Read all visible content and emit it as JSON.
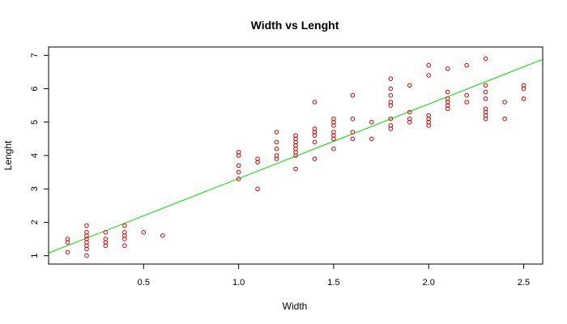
{
  "chart_data": {
    "type": "scatter",
    "title": "Width vs Lenght",
    "xlabel": "Width",
    "ylabel": "Lenght",
    "xlim": [
      0.0,
      2.6
    ],
    "ylim": [
      0.75,
      7.25
    ],
    "x_ticks": [
      0.5,
      1.0,
      1.5,
      2.0,
      2.5
    ],
    "x_tick_labels": [
      "0.5",
      "1.0",
      "1.5",
      "2.0",
      "2.5"
    ],
    "y_ticks": [
      1,
      2,
      3,
      4,
      5,
      6,
      7
    ],
    "y_tick_labels": [
      "1",
      "2",
      "3",
      "4",
      "5",
      "6",
      "7"
    ],
    "grid": false,
    "point_color": "#cc0000",
    "line_color": "#00dd00",
    "regression_line": {
      "intercept": 1.08,
      "slope": 2.23
    },
    "points": [
      [
        0.1,
        1.4
      ],
      [
        0.1,
        1.5
      ],
      [
        0.1,
        1.1
      ],
      [
        0.2,
        1.0
      ],
      [
        0.2,
        1.2
      ],
      [
        0.2,
        1.3
      ],
      [
        0.2,
        1.4
      ],
      [
        0.2,
        1.5
      ],
      [
        0.2,
        1.6
      ],
      [
        0.2,
        1.7
      ],
      [
        0.2,
        1.9
      ],
      [
        0.3,
        1.3
      ],
      [
        0.3,
        1.4
      ],
      [
        0.3,
        1.5
      ],
      [
        0.3,
        1.7
      ],
      [
        0.4,
        1.3
      ],
      [
        0.4,
        1.5
      ],
      [
        0.4,
        1.6
      ],
      [
        0.4,
        1.7
      ],
      [
        0.4,
        1.9
      ],
      [
        0.5,
        1.7
      ],
      [
        0.6,
        1.6
      ],
      [
        1.0,
        3.3
      ],
      [
        1.0,
        3.5
      ],
      [
        1.0,
        3.7
      ],
      [
        1.0,
        4.0
      ],
      [
        1.0,
        4.1
      ],
      [
        1.1,
        3.0
      ],
      [
        1.1,
        3.8
      ],
      [
        1.1,
        3.9
      ],
      [
        1.2,
        3.9
      ],
      [
        1.2,
        4.0
      ],
      [
        1.2,
        4.2
      ],
      [
        1.2,
        4.4
      ],
      [
        1.2,
        4.7
      ],
      [
        1.3,
        3.6
      ],
      [
        1.3,
        4.0
      ],
      [
        1.3,
        4.1
      ],
      [
        1.3,
        4.2
      ],
      [
        1.3,
        4.3
      ],
      [
        1.3,
        4.4
      ],
      [
        1.3,
        4.5
      ],
      [
        1.3,
        4.6
      ],
      [
        1.4,
        3.9
      ],
      [
        1.4,
        4.4
      ],
      [
        1.4,
        4.6
      ],
      [
        1.4,
        4.7
      ],
      [
        1.4,
        4.8
      ],
      [
        1.4,
        5.6
      ],
      [
        1.5,
        4.2
      ],
      [
        1.5,
        4.5
      ],
      [
        1.5,
        4.6
      ],
      [
        1.5,
        4.7
      ],
      [
        1.5,
        4.9
      ],
      [
        1.5,
        5.0
      ],
      [
        1.5,
        5.1
      ],
      [
        1.6,
        4.5
      ],
      [
        1.6,
        4.7
      ],
      [
        1.6,
        5.1
      ],
      [
        1.6,
        5.8
      ],
      [
        1.7,
        4.5
      ],
      [
        1.7,
        5.0
      ],
      [
        1.8,
        4.8
      ],
      [
        1.8,
        4.9
      ],
      [
        1.8,
        5.1
      ],
      [
        1.8,
        5.5
      ],
      [
        1.8,
        5.6
      ],
      [
        1.8,
        5.8
      ],
      [
        1.8,
        6.0
      ],
      [
        1.8,
        6.3
      ],
      [
        1.9,
        5.0
      ],
      [
        1.9,
        5.1
      ],
      [
        1.9,
        5.3
      ],
      [
        1.9,
        6.1
      ],
      [
        2.0,
        4.9
      ],
      [
        2.0,
        5.0
      ],
      [
        2.0,
        5.1
      ],
      [
        2.0,
        5.2
      ],
      [
        2.0,
        6.4
      ],
      [
        2.0,
        6.7
      ],
      [
        2.1,
        5.4
      ],
      [
        2.1,
        5.5
      ],
      [
        2.1,
        5.6
      ],
      [
        2.1,
        5.7
      ],
      [
        2.1,
        5.9
      ],
      [
        2.1,
        6.6
      ],
      [
        2.2,
        5.6
      ],
      [
        2.2,
        5.8
      ],
      [
        2.2,
        6.7
      ],
      [
        2.3,
        5.1
      ],
      [
        2.3,
        5.2
      ],
      [
        2.3,
        5.3
      ],
      [
        2.3,
        5.4
      ],
      [
        2.3,
        5.7
      ],
      [
        2.3,
        5.9
      ],
      [
        2.3,
        6.1
      ],
      [
        2.3,
        6.9
      ],
      [
        2.4,
        5.1
      ],
      [
        2.4,
        5.6
      ],
      [
        2.5,
        5.7
      ],
      [
        2.5,
        6.0
      ],
      [
        2.5,
        6.1
      ]
    ]
  }
}
